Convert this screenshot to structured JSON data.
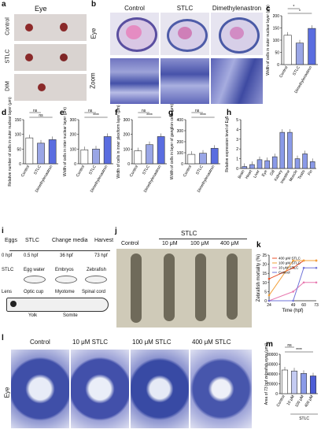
{
  "panels": {
    "a": {
      "letter": "a",
      "title": "Eye",
      "rows": [
        "Control",
        "STLC",
        "DIM"
      ]
    },
    "b": {
      "letter": "b",
      "cols": [
        "Control",
        "STLC",
        "Dimethylenastron"
      ],
      "row_labels": [
        "Eye",
        "Zoom"
      ]
    },
    "c": {
      "letter": "c"
    },
    "d": {
      "letter": "d"
    },
    "e": {
      "letter": "e"
    },
    "f": {
      "letter": "f"
    },
    "g": {
      "letter": "g"
    },
    "h": {
      "letter": "h"
    },
    "i": {
      "letter": "i",
      "steps": [
        "Eggs",
        "STLC",
        "Change media",
        "Harvest"
      ],
      "times": [
        "0 hpf",
        "0.5 hpf",
        "36 hpf",
        "73 hpf"
      ],
      "dish_labels": [
        "STLC",
        "Egg water",
        "Embryos",
        "Zebrafish"
      ],
      "fish_labels": [
        "Lens",
        "Optic cup",
        "Myotome",
        "Spinal cord",
        "Yolk",
        "Somite"
      ]
    },
    "j": {
      "letter": "j",
      "group": "STLC",
      "cols": [
        "Control",
        "10 μM",
        "100 μM",
        "400 μM"
      ]
    },
    "k": {
      "letter": "k"
    },
    "l": {
      "letter": "l",
      "row": "Eye",
      "cols": [
        "Control",
        "10 μM STLC",
        "100 μM STLC",
        "400 μM STLC"
      ]
    },
    "m": {
      "letter": "m"
    }
  },
  "chart_data": [
    {
      "id": "c",
      "type": "bar",
      "ylabel": "Width of cells in outer nuclear layer (μm)",
      "categories": [
        "Control",
        "STLC",
        "Dimethylenastron"
      ],
      "values": [
        120,
        88,
        148
      ],
      "ylim": [
        0,
        200
      ],
      "yticks": [
        0,
        50,
        100,
        150,
        200
      ],
      "sig": [
        "*",
        "*"
      ],
      "colors": [
        "#ffffff",
        "#9aa6e6",
        "#5a6de0"
      ]
    },
    {
      "id": "d",
      "type": "bar",
      "ylabel": "Relative number of cells in outer nuclear layer (μm)",
      "categories": [
        "Control",
        "STLC",
        "Dimethylenastron"
      ],
      "values": [
        88,
        70,
        82
      ],
      "ylim": [
        0,
        150
      ],
      "yticks": [
        0,
        50,
        100,
        150
      ],
      "sig": [
        "ns",
        "ns"
      ],
      "colors": [
        "#ffffff",
        "#9aa6e6",
        "#5a6de0"
      ]
    },
    {
      "id": "e",
      "type": "bar",
      "ylabel": "Width of cells in inter nuclear layer (μm)",
      "categories": [
        "Control",
        "STLC",
        "Dimethylenastron"
      ],
      "values": [
        95,
        100,
        185
      ],
      "ylim": [
        0,
        300
      ],
      "yticks": [
        0,
        100,
        200,
        300
      ],
      "sig": [
        "****",
        "ns"
      ],
      "colors": [
        "#ffffff",
        "#9aa6e6",
        "#5a6de0"
      ]
    },
    {
      "id": "f",
      "type": "bar",
      "ylabel": "Width of cells in inner plexiform layer (μm)",
      "categories": [
        "Control",
        "STLC",
        "Dimethylenastron"
      ],
      "values": [
        88,
        130,
        185
      ],
      "ylim": [
        0,
        300
      ],
      "yticks": [
        0,
        100,
        200,
        300
      ],
      "sig": [
        "****",
        "ns"
      ],
      "colors": [
        "#ffffff",
        "#9aa6e6",
        "#5a6de0"
      ]
    },
    {
      "id": "g",
      "type": "bar",
      "ylabel": "Width of cells in layer of ganglion cells (μm)",
      "categories": [
        "Control",
        "STLC",
        "Dimethylenastron"
      ],
      "values": [
        85,
        95,
        140
      ],
      "ylim": [
        0,
        400
      ],
      "yticks": [
        0,
        100,
        200,
        300,
        400
      ],
      "sig": [
        "****",
        "ns"
      ],
      "colors": [
        "#ffffff",
        "#9aa6e6",
        "#5a6de0"
      ]
    },
    {
      "id": "h",
      "type": "bar",
      "ylabel": "Relative expression level of Eg5",
      "categories": [
        "Brain",
        "Heart",
        "Liver",
        "Eye",
        "Gill",
        "Kidney",
        "Intestine",
        "Muscle",
        "Testis",
        "Fin"
      ],
      "values": [
        0.2,
        0.4,
        0.9,
        0.8,
        1.2,
        3.7,
        3.7,
        1.0,
        1.5,
        0.7
      ],
      "ylim": [
        0,
        5
      ],
      "yticks": [
        0,
        1,
        2,
        3,
        4,
        5
      ],
      "colors": [
        "#8a9ae8"
      ]
    },
    {
      "id": "k",
      "type": "line",
      "ylabel": "Zebrafish mortality (%)",
      "xlabel": "Time (hpf)",
      "x": [
        24,
        49,
        60,
        73
      ],
      "xticks": [
        24,
        49,
        60,
        73
      ],
      "ylim": [
        0,
        25
      ],
      "yticks": [
        0,
        5,
        10,
        15,
        20,
        25
      ],
      "series": [
        {
          "name": "400 μM STLC",
          "color": "#e8502a",
          "values": [
            12,
            18,
            22,
            22
          ]
        },
        {
          "name": "100 μM STLC",
          "color": "#f2a03a",
          "values": [
            3,
            22,
            22,
            22
          ]
        },
        {
          "name": "10 μM STLC",
          "color": "#e87ab0",
          "values": [
            0,
            5,
            10,
            10
          ]
        },
        {
          "name": "Control",
          "color": "#6f73d8",
          "values": [
            0,
            0,
            18,
            18
          ]
        }
      ]
    },
    {
      "id": "m",
      "type": "bar",
      "ylabel": "Area of 73 hpf zebrafish eyes (μm²)",
      "categories": [
        "Control",
        "10 μM",
        "100 μM",
        "400 μM"
      ],
      "group": "STLC",
      "values": [
        48000,
        46000,
        41000,
        36000
      ],
      "ylim": [
        0,
        80000
      ],
      "yticks": [
        0,
        20000,
        40000,
        60000,
        80000
      ],
      "sig": [
        "****",
        "ns"
      ],
      "colors": [
        "#ffffff",
        "#c4cbf2",
        "#8a9ae8",
        "#4c5dd6"
      ]
    }
  ]
}
